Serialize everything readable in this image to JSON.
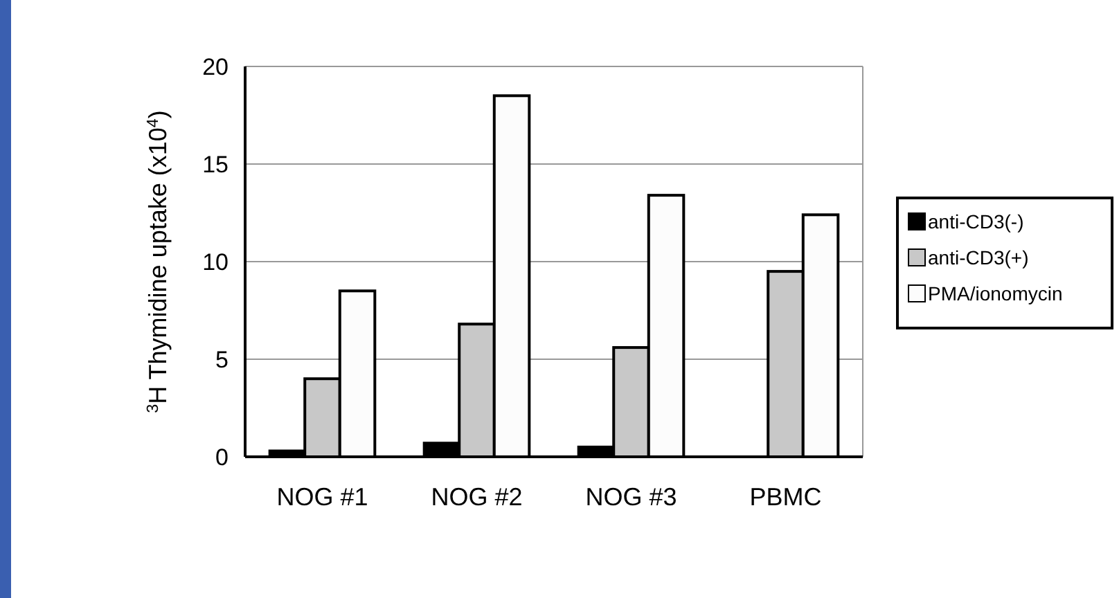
{
  "chart_data": {
    "type": "bar",
    "ylabel": "$^{3}$H Thymidine uptake (x10$^{4}$)",
    "categories": [
      "NOG #1",
      "NOG #2",
      "NOG #3",
      "PBMC"
    ],
    "series": [
      {
        "name": "anti-CD3(-)",
        "color": "#000000",
        "values": [
          0.3,
          0.7,
          0.5,
          0
        ]
      },
      {
        "name": "anti-CD3(+)",
        "color": "#c8c8c8",
        "values": [
          4.0,
          6.8,
          5.6,
          9.5
        ]
      },
      {
        "name": "PMA/ionomycin",
        "color": "#fcfcfc",
        "values": [
          8.5,
          18.5,
          13.4,
          12.4
        ]
      }
    ],
    "ylim": [
      0,
      20
    ],
    "yticks": [
      0,
      5,
      10,
      15,
      20
    ],
    "grid": "y",
    "legend": "right"
  }
}
